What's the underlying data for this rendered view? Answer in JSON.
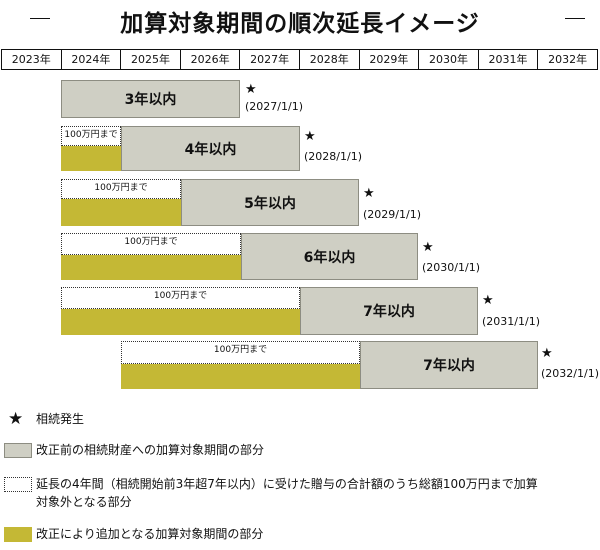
{
  "title": "加算対象期間の順次延長イメージ",
  "years": [
    "2023年",
    "2024年",
    "2025年",
    "2026年",
    "2027年",
    "2028年",
    "2029年",
    "2030年",
    "2031年",
    "2032年"
  ],
  "rows": [
    {
      "label": "3年以内",
      "date": "(2027/1/1)",
      "dotted_label": ""
    },
    {
      "label": "4年以内",
      "date": "(2028/1/1)",
      "dotted_label": "100万円まで"
    },
    {
      "label": "5年以内",
      "date": "(2029/1/1)",
      "dotted_label": "100万円まで"
    },
    {
      "label": "6年以内",
      "date": "(2030/1/1)",
      "dotted_label": "100万円まで"
    },
    {
      "label": "7年以内",
      "date": "(2031/1/1)",
      "dotted_label": "100万円まで"
    },
    {
      "label": "7年以内",
      "date": "(2032/1/1)",
      "dotted_label": "100万円まで"
    }
  ],
  "star_symbol": "★",
  "legend": {
    "star": "相続発生",
    "gray": "改正前の相続財産への加算対象期間の部分",
    "dotted_line1": "延長の4年間（相続開始前3年超7年以内）に受けた贈与の合計額のうち総額100万円まで加算",
    "dotted_line2": "対象外となる部分",
    "olive": "改正により追加となる加算対象期間の部分"
  },
  "colors": {
    "gray": "#cfcfc4",
    "olive": "#c4b835"
  }
}
